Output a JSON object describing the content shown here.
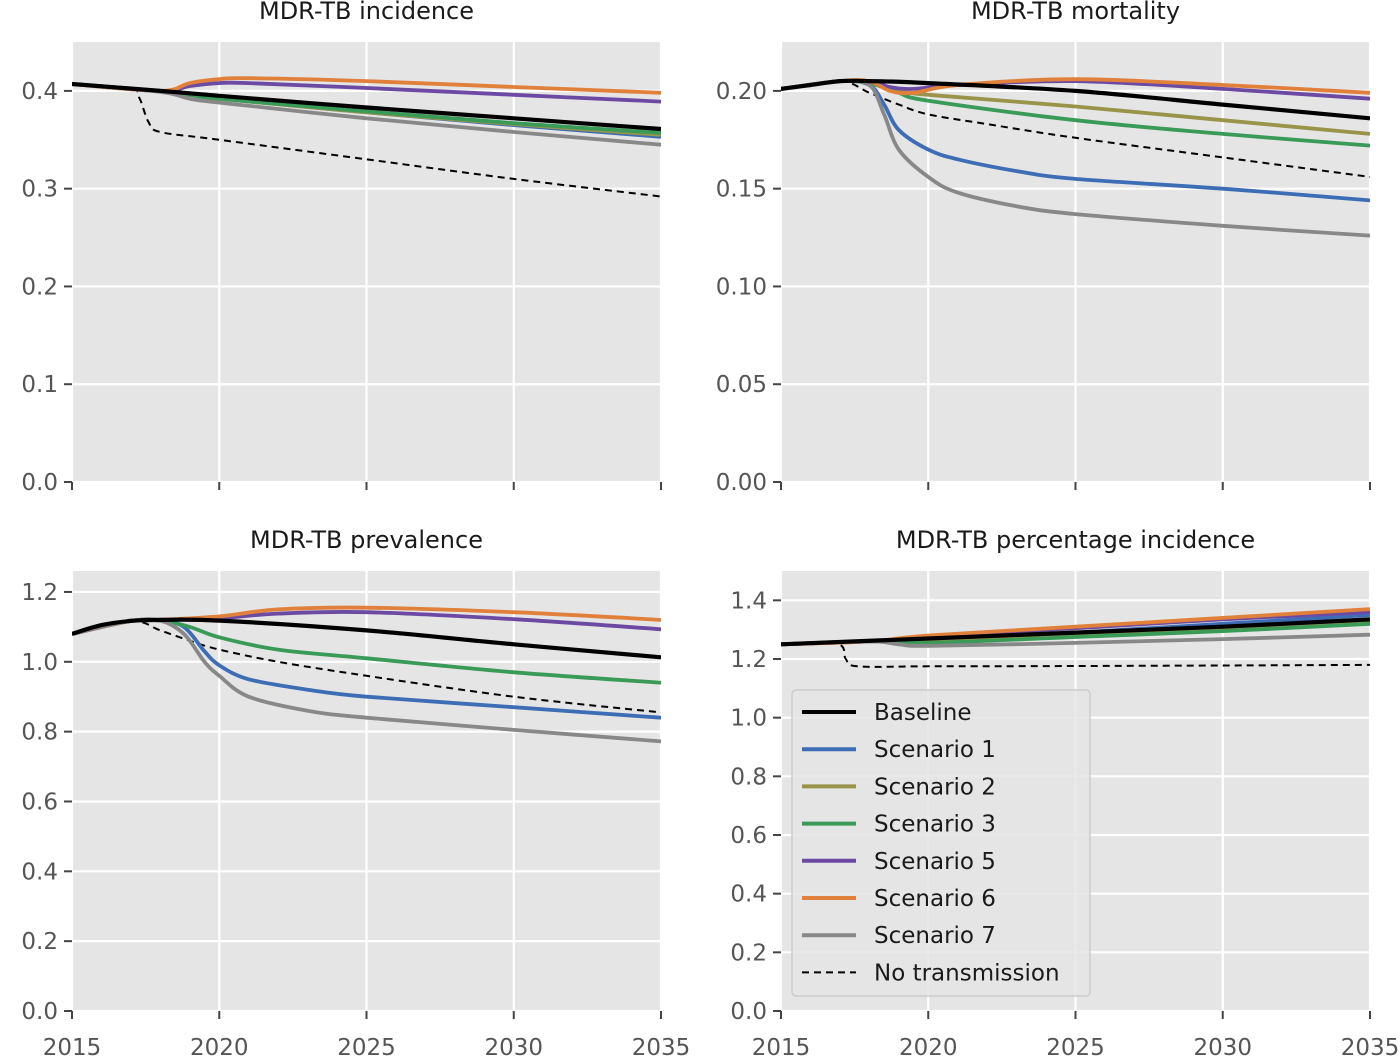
{
  "chart_data": [
    {
      "type": "line",
      "title": "MDR-TB incidence",
      "xlabel": "",
      "ylabel": "",
      "xlim": [
        2015,
        2035
      ],
      "ylim": [
        0,
        0.45
      ],
      "xticks": [
        2015,
        2020,
        2025,
        2030,
        2035
      ],
      "xtick_labels": [
        "",
        "",
        "",
        "",
        ""
      ],
      "yticks": [
        0,
        0.1,
        0.2,
        0.3,
        0.4
      ],
      "ytick_labels": [
        "0.0",
        "0.1",
        "0.2",
        "0.3",
        "0.4"
      ],
      "grid": true,
      "series": [
        {
          "name": "Baseline",
          "color": "#000000",
          "x": [
            2015,
            2018,
            2020,
            2025,
            2030,
            2035
          ],
          "y": [
            0.407,
            0.4,
            0.395,
            0.383,
            0.372,
            0.361
          ]
        },
        {
          "name": "Scenario 1",
          "color": "#3d6db5",
          "x": [
            2015,
            2018,
            2019,
            2020,
            2025,
            2030,
            2035
          ],
          "y": [
            0.407,
            0.4,
            0.396,
            0.392,
            0.378,
            0.365,
            0.353
          ]
        },
        {
          "name": "Scenario 2",
          "color": "#99944a",
          "x": [
            2015,
            2018,
            2019,
            2020,
            2025,
            2030,
            2035
          ],
          "y": [
            0.407,
            0.4,
            0.396,
            0.392,
            0.378,
            0.366,
            0.355
          ]
        },
        {
          "name": "Scenario 3",
          "color": "#3a9a57",
          "x": [
            2015,
            2018,
            2019,
            2020,
            2025,
            2030,
            2035
          ],
          "y": [
            0.407,
            0.4,
            0.396,
            0.392,
            0.379,
            0.367,
            0.357
          ]
        },
        {
          "name": "Scenario 5",
          "color": "#6c4aa3",
          "x": [
            2015,
            2018,
            2019,
            2020,
            2021,
            2025,
            2030,
            2035
          ],
          "y": [
            0.407,
            0.4,
            0.405,
            0.408,
            0.408,
            0.403,
            0.396,
            0.389
          ]
        },
        {
          "name": "Scenario 6",
          "color": "#e0803a",
          "x": [
            2015,
            2018,
            2019,
            2020,
            2021,
            2025,
            2030,
            2035
          ],
          "y": [
            0.407,
            0.4,
            0.408,
            0.412,
            0.413,
            0.41,
            0.404,
            0.398
          ]
        },
        {
          "name": "Scenario 7",
          "color": "#888888",
          "x": [
            2015,
            2018,
            2019,
            2020,
            2025,
            2030,
            2035
          ],
          "y": [
            0.407,
            0.399,
            0.392,
            0.388,
            0.372,
            0.358,
            0.345
          ]
        },
        {
          "name": "No transmission",
          "color": "#000000",
          "dashed": true,
          "x": [
            2015,
            2017,
            2017.3,
            2017.6,
            2018,
            2020,
            2025,
            2030,
            2035
          ],
          "y": [
            0.407,
            0.402,
            0.392,
            0.368,
            0.358,
            0.35,
            0.33,
            0.31,
            0.292
          ]
        }
      ]
    },
    {
      "type": "line",
      "title": "MDR-TB mortality",
      "xlabel": "",
      "ylabel": "",
      "xlim": [
        2015,
        2035
      ],
      "ylim": [
        0,
        0.225
      ],
      "xticks": [
        2015,
        2020,
        2025,
        2030,
        2035
      ],
      "xtick_labels": [
        "",
        "",
        "",
        "",
        ""
      ],
      "yticks": [
        0,
        0.05,
        0.1,
        0.15,
        0.2
      ],
      "ytick_labels": [
        "0.00",
        "0.05",
        "0.10",
        "0.15",
        "0.20"
      ],
      "grid": true,
      "series": [
        {
          "name": "Baseline",
          "color": "#000000",
          "x": [
            2015,
            2016,
            2017,
            2018,
            2020,
            2025,
            2030,
            2035
          ],
          "y": [
            0.201,
            0.203,
            0.205,
            0.205,
            0.204,
            0.2,
            0.193,
            0.186
          ]
        },
        {
          "name": "Scenario 1",
          "color": "#3d6db5",
          "x": [
            2015,
            2017,
            2018,
            2018.5,
            2019,
            2020,
            2021,
            2023,
            2025,
            2030,
            2035
          ],
          "y": [
            0.201,
            0.205,
            0.203,
            0.193,
            0.18,
            0.17,
            0.165,
            0.159,
            0.155,
            0.15,
            0.144
          ]
        },
        {
          "name": "Scenario 2",
          "color": "#99944a",
          "x": [
            2015,
            2017,
            2018,
            2019,
            2020,
            2025,
            2030,
            2035
          ],
          "y": [
            0.201,
            0.205,
            0.204,
            0.2,
            0.198,
            0.192,
            0.185,
            0.178
          ]
        },
        {
          "name": "Scenario 3",
          "color": "#3a9a57",
          "x": [
            2015,
            2017,
            2018,
            2019,
            2020,
            2025,
            2030,
            2035
          ],
          "y": [
            0.201,
            0.205,
            0.204,
            0.199,
            0.195,
            0.185,
            0.178,
            0.172
          ]
        },
        {
          "name": "Scenario 5",
          "color": "#6c4aa3",
          "x": [
            2015,
            2017,
            2018,
            2018.7,
            2019.5,
            2021,
            2025,
            2030,
            2035
          ],
          "y": [
            0.201,
            0.205,
            0.205,
            0.202,
            0.201,
            0.203,
            0.205,
            0.201,
            0.196
          ]
        },
        {
          "name": "Scenario 6",
          "color": "#e0803a",
          "x": [
            2015,
            2017,
            2018,
            2018.7,
            2019.5,
            2021,
            2025,
            2030,
            2035
          ],
          "y": [
            0.201,
            0.205,
            0.205,
            0.2,
            0.199,
            0.203,
            0.206,
            0.203,
            0.199
          ]
        },
        {
          "name": "Scenario 7",
          "color": "#888888",
          "x": [
            2015,
            2017,
            2018,
            2018.5,
            2019,
            2020,
            2021,
            2023,
            2025,
            2030,
            2035
          ],
          "y": [
            0.201,
            0.205,
            0.203,
            0.188,
            0.17,
            0.156,
            0.148,
            0.141,
            0.137,
            0.131,
            0.126
          ]
        },
        {
          "name": "No transmission",
          "color": "#000000",
          "dashed": true,
          "x": [
            2015,
            2017,
            2018,
            2019,
            2020,
            2022,
            2025,
            2030,
            2035
          ],
          "y": [
            0.201,
            0.205,
            0.199,
            0.193,
            0.188,
            0.183,
            0.176,
            0.166,
            0.156
          ]
        }
      ]
    },
    {
      "type": "line",
      "title": "MDR-TB prevalence",
      "xlabel": "",
      "ylabel": "",
      "xlim": [
        2015,
        2035
      ],
      "ylim": [
        0,
        1.26
      ],
      "xticks": [
        2015,
        2020,
        2025,
        2030,
        2035
      ],
      "xtick_labels": [
        "2015",
        "2020",
        "2025",
        "2030",
        "2035"
      ],
      "yticks": [
        0,
        0.2,
        0.4,
        0.6,
        0.8,
        1.0,
        1.2
      ],
      "ytick_labels": [
        "0.0",
        "0.2",
        "0.4",
        "0.6",
        "0.8",
        "1.0",
        "1.2"
      ],
      "grid": true,
      "series": [
        {
          "name": "Baseline",
          "color": "#000000",
          "x": [
            2015,
            2016,
            2017,
            2018,
            2020,
            2025,
            2030,
            2035
          ],
          "y": [
            1.08,
            1.105,
            1.117,
            1.12,
            1.118,
            1.09,
            1.05,
            1.013
          ]
        },
        {
          "name": "Scenario 1",
          "color": "#3d6db5",
          "x": [
            2015,
            2017,
            2018,
            2018.8,
            2019.5,
            2020,
            2021,
            2023,
            2025,
            2030,
            2035
          ],
          "y": [
            1.08,
            1.117,
            1.118,
            1.1,
            1.03,
            0.99,
            0.95,
            0.92,
            0.9,
            0.87,
            0.84
          ]
        },
        {
          "name": "Scenario 3",
          "color": "#3a9a57",
          "x": [
            2015,
            2017,
            2018,
            2019,
            2020,
            2022,
            2025,
            2030,
            2035
          ],
          "y": [
            1.08,
            1.117,
            1.118,
            1.1,
            1.07,
            1.035,
            1.01,
            0.97,
            0.94
          ]
        },
        {
          "name": "Scenario 5",
          "color": "#6c4aa3",
          "x": [
            2015,
            2017,
            2018,
            2020,
            2022,
            2025,
            2030,
            2035
          ],
          "y": [
            1.08,
            1.117,
            1.12,
            1.125,
            1.138,
            1.142,
            1.122,
            1.093
          ]
        },
        {
          "name": "Scenario 6",
          "color": "#e0803a",
          "x": [
            2015,
            2017,
            2018,
            2020,
            2022,
            2025,
            2030,
            2035
          ],
          "y": [
            1.08,
            1.117,
            1.12,
            1.13,
            1.15,
            1.155,
            1.142,
            1.12
          ]
        },
        {
          "name": "Scenario 7",
          "color": "#888888",
          "x": [
            2015,
            2017,
            2018,
            2018.8,
            2019.5,
            2020,
            2021,
            2023,
            2025,
            2030,
            2035
          ],
          "y": [
            1.08,
            1.117,
            1.118,
            1.08,
            1.0,
            0.96,
            0.9,
            0.86,
            0.84,
            0.805,
            0.772
          ]
        },
        {
          "name": "No transmission",
          "color": "#000000",
          "dashed": true,
          "x": [
            2015,
            2017,
            2018,
            2019,
            2020,
            2022,
            2025,
            2030,
            2035
          ],
          "y": [
            1.08,
            1.117,
            1.09,
            1.06,
            1.035,
            1.0,
            0.96,
            0.9,
            0.855
          ]
        }
      ]
    },
    {
      "type": "line",
      "title": "MDR-TB percentage incidence",
      "xlabel": "",
      "ylabel": "",
      "xlim": [
        2015,
        2035
      ],
      "ylim": [
        0,
        1.5
      ],
      "xticks": [
        2015,
        2020,
        2025,
        2030,
        2035
      ],
      "xtick_labels": [
        "2015",
        "2020",
        "2025",
        "2030",
        "2035"
      ],
      "yticks": [
        0,
        0.2,
        0.4,
        0.6,
        0.8,
        1.0,
        1.2,
        1.4
      ],
      "ytick_labels": [
        "0.0",
        "0.2",
        "0.4",
        "0.6",
        "0.8",
        "1.0",
        "1.2",
        "1.4"
      ],
      "grid": true,
      "legend": {
        "position": "lower-left",
        "entries": [
          {
            "label": "Baseline",
            "color": "#000000"
          },
          {
            "label": "Scenario 1",
            "color": "#3d6db5"
          },
          {
            "label": "Scenario 2",
            "color": "#99944a"
          },
          {
            "label": "Scenario 3",
            "color": "#3a9a57"
          },
          {
            "label": "Scenario 5",
            "color": "#6c4aa3"
          },
          {
            "label": "Scenario 6",
            "color": "#e0803a"
          },
          {
            "label": "Scenario 7",
            "color": "#888888"
          },
          {
            "label": "No transmission",
            "color": "#000000",
            "dashed": true
          }
        ]
      },
      "series": [
        {
          "name": "Baseline",
          "color": "#000000",
          "x": [
            2015,
            2020,
            2025,
            2030,
            2035
          ],
          "y": [
            1.25,
            1.27,
            1.29,
            1.31,
            1.335
          ]
        },
        {
          "name": "Scenario 1",
          "color": "#3d6db5",
          "x": [
            2015,
            2018,
            2020,
            2025,
            2030,
            2035
          ],
          "y": [
            1.25,
            1.26,
            1.265,
            1.29,
            1.32,
            1.35
          ]
        },
        {
          "name": "Scenario 2",
          "color": "#99944a",
          "x": [
            2015,
            2018,
            2020,
            2025,
            2030,
            2035
          ],
          "y": [
            1.25,
            1.26,
            1.26,
            1.28,
            1.3,
            1.325
          ]
        },
        {
          "name": "Scenario 3",
          "color": "#3a9a57",
          "x": [
            2015,
            2018,
            2020,
            2025,
            2030,
            2035
          ],
          "y": [
            1.25,
            1.26,
            1.255,
            1.275,
            1.295,
            1.32
          ]
        },
        {
          "name": "Scenario 5",
          "color": "#6c4aa3",
          "x": [
            2015,
            2018,
            2020,
            2025,
            2030,
            2035
          ],
          "y": [
            1.25,
            1.26,
            1.275,
            1.305,
            1.335,
            1.36
          ]
        },
        {
          "name": "Scenario 6",
          "color": "#e0803a",
          "x": [
            2015,
            2018,
            2020,
            2025,
            2030,
            2035
          ],
          "y": [
            1.25,
            1.26,
            1.28,
            1.31,
            1.34,
            1.37
          ]
        },
        {
          "name": "Scenario 7",
          "color": "#888888",
          "x": [
            2015,
            2018,
            2019,
            2020,
            2025,
            2030,
            2035
          ],
          "y": [
            1.25,
            1.26,
            1.25,
            1.245,
            1.255,
            1.268,
            1.283
          ]
        },
        {
          "name": "No transmission",
          "color": "#000000",
          "dashed": true,
          "x": [
            2015,
            2016.9,
            2017.2,
            2017.6,
            2020,
            2025,
            2030,
            2035
          ],
          "y": [
            1.25,
            1.252,
            1.2,
            1.175,
            1.175,
            1.176,
            1.178,
            1.18
          ]
        }
      ]
    }
  ]
}
